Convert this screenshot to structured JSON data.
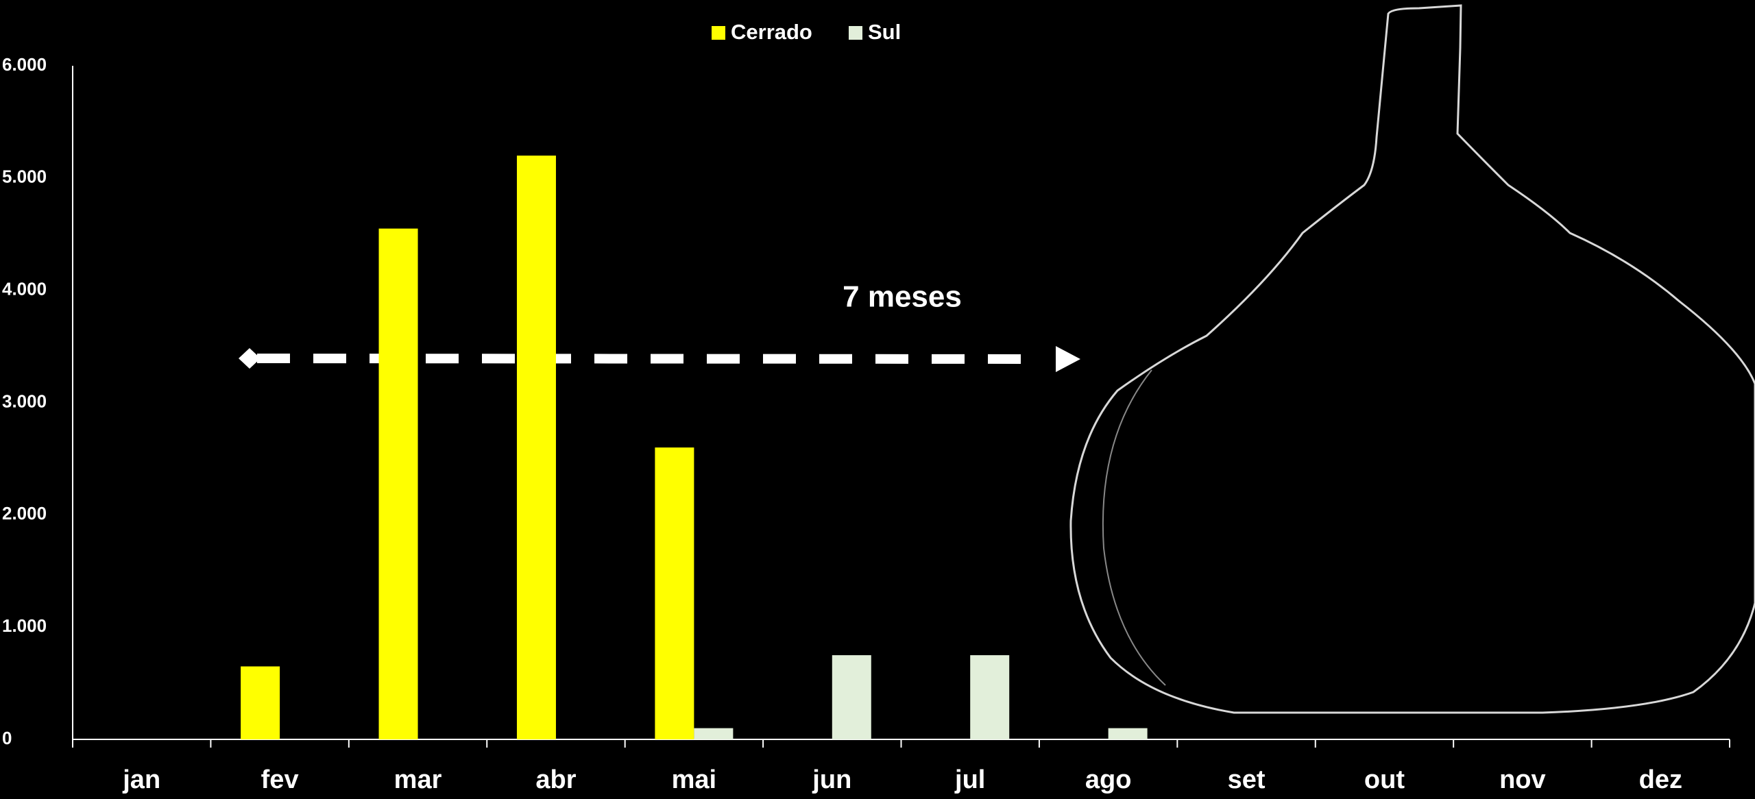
{
  "chart_data": {
    "type": "bar",
    "categories": [
      "jan",
      "fev",
      "mar",
      "abr",
      "mai",
      "jun",
      "jul",
      "ago",
      "set",
      "out",
      "nov",
      "dez"
    ],
    "series": [
      {
        "name": "Cerrado",
        "color": "#ffff00",
        "values": [
          0,
          650,
          4550,
          5200,
          2600,
          0,
          0,
          0,
          0,
          0,
          0,
          0
        ]
      },
      {
        "name": "Sul",
        "color": "#e2efda",
        "values": [
          0,
          0,
          0,
          0,
          100,
          750,
          750,
          100,
          0,
          0,
          0,
          0
        ]
      }
    ],
    "ylim": [
      0,
      6000
    ],
    "yticks": [
      0,
      {
        "value": 1000,
        "label": "1.000"
      },
      {
        "value": 2000,
        "label": "2.000"
      },
      {
        "value": 3000,
        "label": "3.000"
      },
      {
        "value": 4000,
        "label": "4.000"
      },
      {
        "value": 5000,
        "label": "5.000"
      },
      {
        "value": 6000,
        "label": "6.000"
      }
    ],
    "annotation": "7 meses",
    "legend": "top",
    "grid": false
  }
}
